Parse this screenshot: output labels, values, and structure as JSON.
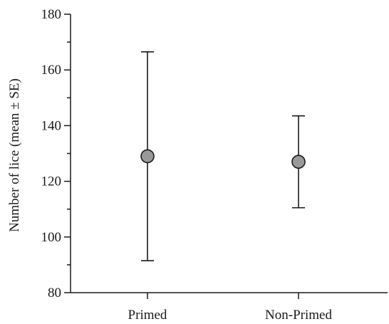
{
  "chart_data": {
    "type": "scatter",
    "subtype": "point-with-error-bars",
    "title": "",
    "xlabel": "",
    "ylabel": "Number of lice (mean ± SE)",
    "categories": [
      "Primed",
      "Non-Primed"
    ],
    "means": [
      129,
      127
    ],
    "error_upper": [
      166.5,
      143.5
    ],
    "error_lower": [
      91.5,
      110.5
    ],
    "ylim": [
      80,
      180
    ],
    "y_major_ticks": [
      80,
      100,
      120,
      140,
      160,
      180
    ],
    "y_major_tick_labels": [
      "80",
      "100",
      "120",
      "140",
      "160",
      "180"
    ],
    "y_minor_ticks": [
      90,
      110,
      130,
      150,
      170
    ],
    "grid": false,
    "legend": "none",
    "marker_color": "#999999",
    "line_color": "#1a1a1a"
  }
}
